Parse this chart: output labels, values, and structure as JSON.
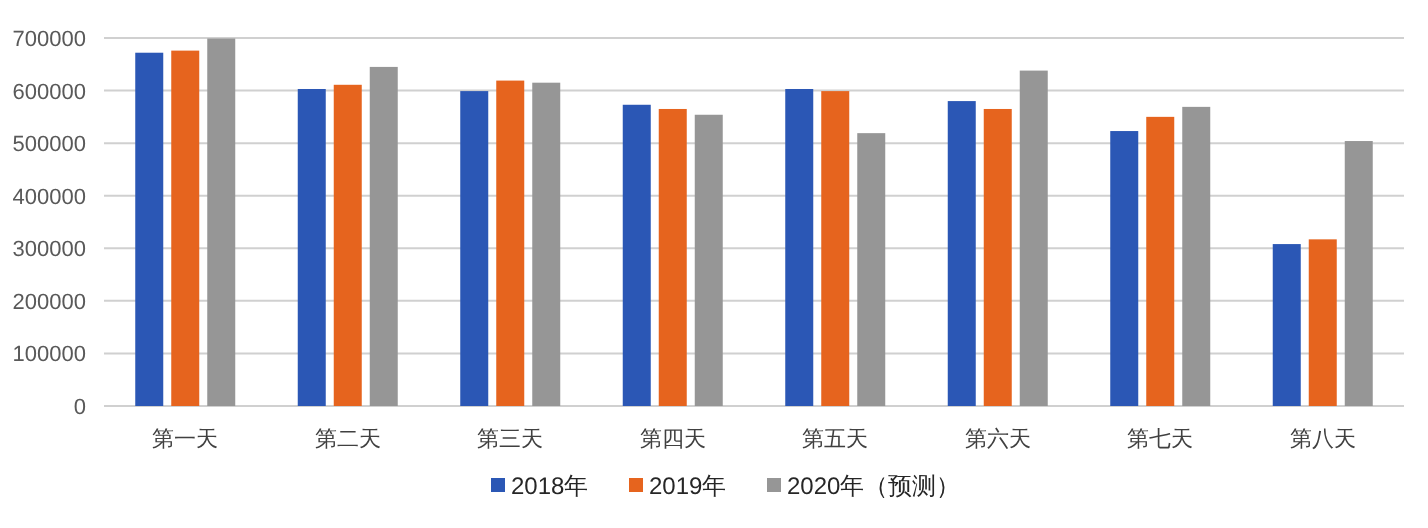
{
  "chart_data": {
    "type": "bar",
    "categories": [
      "第一天",
      "第二天",
      "第三天",
      "第四天",
      "第五天",
      "第六天",
      "第七天",
      "第八天"
    ],
    "series": [
      {
        "name": "2018年",
        "color": "#2b57b5",
        "values": [
          672000,
          603000,
          599000,
          573000,
          603000,
          580000,
          523000,
          308000
        ]
      },
      {
        "name": "2019年",
        "color": "#e6641e",
        "values": [
          676000,
          611000,
          619000,
          565000,
          599000,
          565000,
          550000,
          317000
        ]
      },
      {
        "name": "2020年（预测）",
        "color": "#969696",
        "values": [
          699000,
          645000,
          615000,
          554000,
          519000,
          638000,
          569000,
          504000
        ]
      }
    ],
    "ylim": [
      0,
      700000
    ],
    "yticks": [
      0,
      100000,
      200000,
      300000,
      400000,
      500000,
      600000,
      700000
    ],
    "grid": "y",
    "legend": "bottom"
  }
}
